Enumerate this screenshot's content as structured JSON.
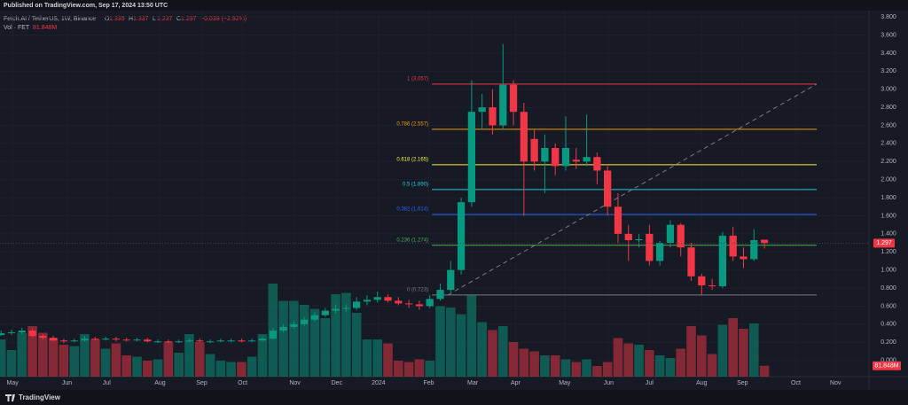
{
  "header": {
    "published": "Published on TradingView.com, Sep 17, 2024 13:50 UTC",
    "symbol": "Fetch.AI / TetherUS, 1W, Binance",
    "ohlc": [
      {
        "key": "O",
        "value": "1.335"
      },
      {
        "key": "H",
        "value": "1.337"
      },
      {
        "key": "L",
        "value": "1.237"
      },
      {
        "key": "C",
        "value": "1.297"
      }
    ],
    "change": "−0.039 (−2.92%)",
    "volume_title": "Vol · FET",
    "brand": "TradingView"
  },
  "chart_data": {
    "type": "candlestick",
    "open": [
      0.28,
      0.3,
      0.31,
      0.33,
      0.27,
      0.25,
      0.22,
      0.21,
      0.22,
      0.24,
      0.23,
      0.24,
      0.23,
      0.22,
      0.23,
      0.21,
      0.21,
      0.2,
      0.21,
      0.22,
      0.21,
      0.21,
      0.22,
      0.22,
      0.21,
      0.22,
      0.24,
      0.33,
      0.37,
      0.4,
      0.45,
      0.5,
      0.55,
      0.57,
      0.58,
      0.65,
      0.67,
      0.7,
      0.66,
      0.63,
      0.62,
      0.6,
      0.68,
      0.78,
      1.0,
      1.75,
      2.75,
      2.8,
      2.6,
      3.05,
      2.75,
      2.45,
      2.2,
      2.35,
      2.15,
      2.22,
      2.2,
      2.25,
      2.1,
      1.7,
      1.4,
      1.33,
      1.4,
      1.1,
      1.3,
      1.5,
      1.25,
      0.93,
      0.83,
      0.82,
      1.38,
      1.15,
      1.12,
      1.335
    ],
    "high": [
      0.33,
      0.34,
      0.36,
      0.35,
      0.29,
      0.27,
      0.24,
      0.24,
      0.27,
      0.26,
      0.26,
      0.26,
      0.25,
      0.25,
      0.25,
      0.23,
      0.23,
      0.23,
      0.24,
      0.24,
      0.23,
      0.24,
      0.24,
      0.24,
      0.24,
      0.26,
      0.36,
      0.4,
      0.43,
      0.48,
      0.53,
      0.58,
      0.62,
      0.62,
      0.7,
      0.72,
      0.76,
      0.73,
      0.7,
      0.67,
      0.66,
      0.72,
      0.85,
      1.1,
      1.8,
      3.1,
      2.95,
      3.0,
      3.5,
      3.1,
      2.85,
      2.55,
      2.5,
      2.4,
      2.7,
      2.35,
      2.72,
      2.3,
      2.15,
      1.85,
      1.5,
      1.4,
      1.5,
      1.32,
      1.55,
      1.52,
      1.3,
      0.96,
      0.9,
      1.42,
      1.48,
      1.25,
      1.45,
      1.337
    ],
    "low": [
      0.27,
      0.28,
      0.29,
      0.26,
      0.23,
      0.21,
      0.19,
      0.2,
      0.21,
      0.22,
      0.22,
      0.21,
      0.21,
      0.21,
      0.2,
      0.19,
      0.19,
      0.19,
      0.2,
      0.2,
      0.19,
      0.2,
      0.2,
      0.2,
      0.2,
      0.21,
      0.23,
      0.31,
      0.35,
      0.38,
      0.43,
      0.48,
      0.52,
      0.54,
      0.56,
      0.61,
      0.64,
      0.64,
      0.61,
      0.58,
      0.56,
      0.58,
      0.66,
      0.75,
      0.95,
      1.7,
      2.55,
      2.5,
      2.55,
      2.6,
      1.6,
      2.1,
      1.85,
      2.05,
      2.1,
      2.12,
      2.15,
      1.95,
      1.6,
      1.3,
      1.1,
      1.25,
      1.05,
      1.05,
      1.25,
      1.15,
      0.88,
      0.72,
      0.78,
      0.8,
      1.1,
      1.02,
      1.1,
      1.237
    ],
    "close": [
      0.3,
      0.31,
      0.33,
      0.27,
      0.25,
      0.22,
      0.21,
      0.22,
      0.24,
      0.23,
      0.24,
      0.23,
      0.22,
      0.23,
      0.21,
      0.21,
      0.2,
      0.21,
      0.22,
      0.21,
      0.21,
      0.22,
      0.22,
      0.21,
      0.22,
      0.24,
      0.33,
      0.37,
      0.4,
      0.45,
      0.5,
      0.55,
      0.57,
      0.58,
      0.65,
      0.67,
      0.7,
      0.66,
      0.63,
      0.62,
      0.6,
      0.68,
      0.78,
      1.0,
      1.75,
      2.75,
      2.8,
      2.6,
      3.05,
      2.75,
      2.2,
      2.2,
      2.35,
      2.15,
      2.35,
      2.2,
      2.25,
      2.1,
      1.7,
      1.4,
      1.33,
      1.34,
      1.1,
      1.3,
      1.5,
      1.25,
      0.93,
      0.83,
      0.82,
      1.38,
      1.15,
      1.12,
      1.33,
      1.297
    ],
    "volume": [
      280,
      200,
      330,
      380,
      330,
      290,
      240,
      230,
      320,
      280,
      210,
      250,
      160,
      150,
      120,
      130,
      260,
      180,
      320,
      260,
      170,
      120,
      110,
      110,
      150,
      320,
      700,
      570,
      570,
      540,
      510,
      440,
      620,
      630,
      480,
      280,
      280,
      250,
      120,
      110,
      130,
      120,
      530,
      520,
      470,
      610,
      410,
      350,
      380,
      260,
      210,
      190,
      160,
      160,
      130,
      110,
      130,
      80,
      110,
      290,
      250,
      240,
      200,
      160,
      140,
      210,
      380,
      310,
      170,
      390,
      440,
      360,
      400,
      81.848
    ],
    "volume_label": "81.848M",
    "up_color": "#089981",
    "down_color": "#f23645",
    "xlim": [
      -0.1,
      83
    ],
    "xticks": [
      {
        "value": 1.1,
        "label": "May"
      },
      {
        "value": 6.3,
        "label": "Jun"
      },
      {
        "value": 10.1,
        "label": "Jul"
      },
      {
        "value": 15.2,
        "label": "Aug"
      },
      {
        "value": 19.2,
        "label": "Sep"
      },
      {
        "value": 23.1,
        "label": "Oct"
      },
      {
        "value": 28.1,
        "label": "Nov"
      },
      {
        "value": 32.1,
        "label": "Dec"
      },
      {
        "value": 36.1,
        "label": "2024"
      },
      {
        "value": 40.9,
        "label": "Feb"
      },
      {
        "value": 45.1,
        "label": "Mar"
      },
      {
        "value": 49.2,
        "label": "Apr"
      },
      {
        "value": 53.9,
        "label": "May"
      },
      {
        "value": 58.1,
        "label": "Jun"
      },
      {
        "value": 62.0,
        "label": "Jul"
      },
      {
        "value": 67.0,
        "label": "Aug"
      },
      {
        "value": 70.9,
        "label": "Sep"
      },
      {
        "value": 76.0,
        "label": "Oct"
      },
      {
        "value": 79.8,
        "label": "Nov"
      }
    ],
    "ylim": [
      -0.18,
      3.87
    ],
    "yticks": [
      {
        "value": 0,
        "label": "0.000"
      },
      {
        "value": 0.2,
        "label": "0.200"
      },
      {
        "value": 0.4,
        "label": "0.400"
      },
      {
        "value": 0.6,
        "label": "0.600"
      },
      {
        "value": 0.8,
        "label": "0.800"
      },
      {
        "value": 1,
        "label": "1.000"
      },
      {
        "value": 1.2,
        "label": "1.200"
      },
      {
        "value": 1.4,
        "label": "1.400"
      },
      {
        "value": 1.6,
        "label": "1.600"
      },
      {
        "value": 1.8,
        "label": "1.800"
      },
      {
        "value": 2,
        "label": "2.000"
      },
      {
        "value": 2.2,
        "label": "2.200"
      },
      {
        "value": 2.4,
        "label": "2.400"
      },
      {
        "value": 2.6,
        "label": "2.600"
      },
      {
        "value": 2.8,
        "label": "2.800"
      },
      {
        "value": 3,
        "label": "3.000"
      },
      {
        "value": 3.2,
        "label": "3.200"
      },
      {
        "value": 3.4,
        "label": "3.400"
      },
      {
        "value": 3.6,
        "label": "3.600"
      },
      {
        "value": 3.8,
        "label": "3.800"
      }
    ],
    "grid": true,
    "fib_levels": [
      {
        "value": 3.057,
        "label": "1 (3.057)",
        "color": "#f23645"
      },
      {
        "value": 2.557,
        "label": "0.786 (2.557)",
        "color": "#ff9800"
      },
      {
        "value": 2.165,
        "label": "0.618 (2.165)",
        "color": "#ffeb3b"
      },
      {
        "value": 1.89,
        "label": "0.5 (1.890)",
        "color": "#26c6da"
      },
      {
        "value": 1.614,
        "label": "0.382 (1.614)",
        "color": "#2962ff"
      },
      {
        "value": 1.274,
        "label": "0.236 (1.274)",
        "color": "#4caf50"
      },
      {
        "value": 0.723,
        "label": "0 (0.723)",
        "color": "#787b86"
      }
    ]
  }
}
